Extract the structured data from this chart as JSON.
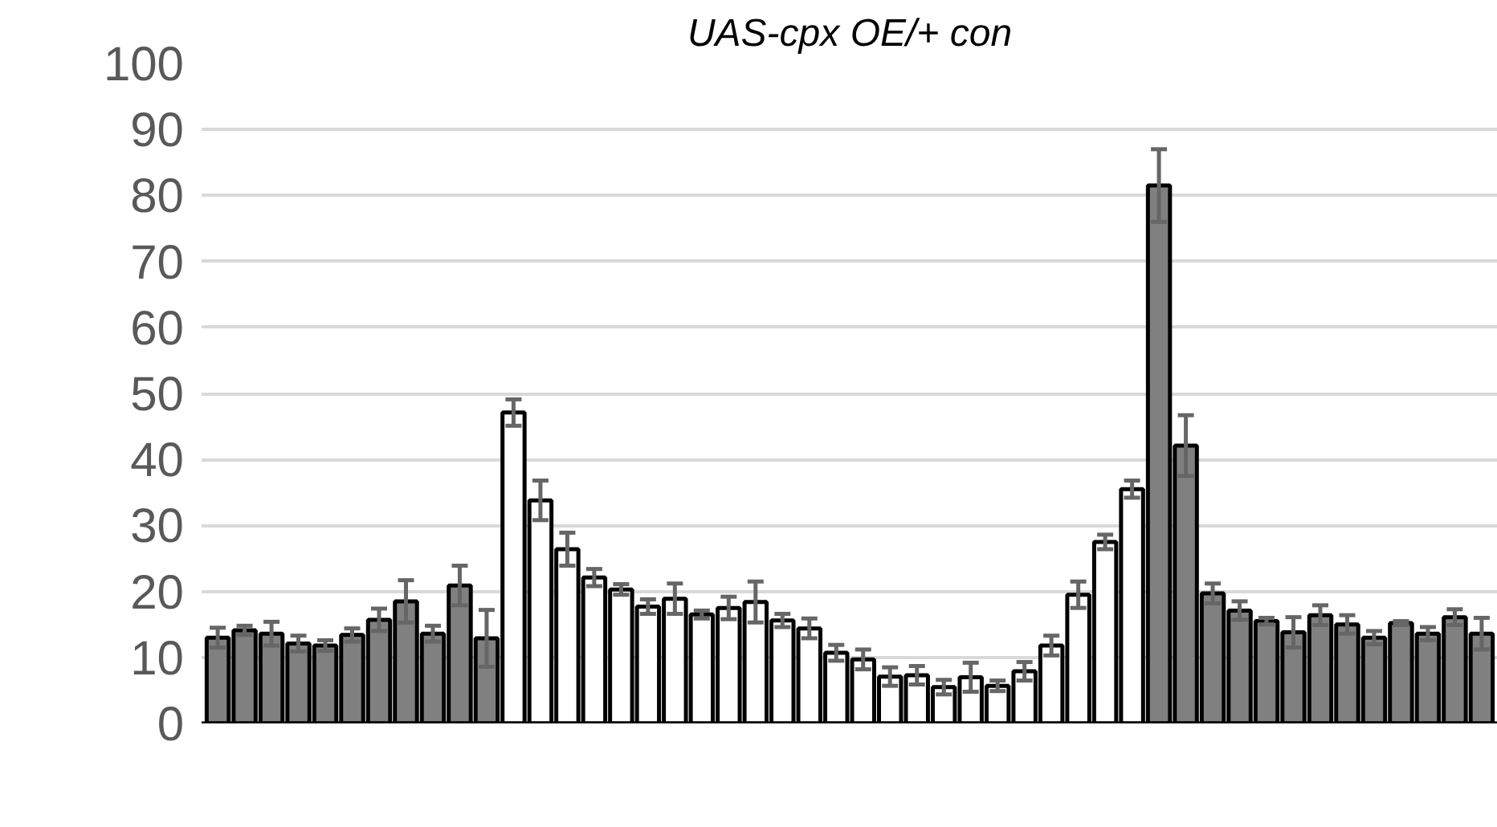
{
  "chart_data": {
    "type": "bar",
    "title": "UAS-cpx OE/+ con",
    "categories": [
      null,
      null,
      null,
      null,
      null,
      null,
      null,
      null,
      null,
      null,
      null,
      null,
      null,
      null,
      null,
      null,
      null,
      null,
      null,
      null,
      null,
      null,
      null,
      null,
      null,
      null,
      null,
      null,
      null,
      null,
      null,
      null,
      null,
      null,
      null,
      null,
      null,
      null,
      null,
      null,
      null,
      null,
      null,
      null,
      null,
      null,
      null,
      null
    ],
    "values": [
      13,
      14.1,
      13.6,
      12.1,
      11.8,
      13.4,
      15.7,
      18.5,
      13.6,
      20.9,
      12.9,
      47.1,
      33.8,
      26.4,
      22.1,
      20.3,
      17.7,
      18.9,
      16.5,
      17.5,
      18.4,
      15.6,
      14.4,
      10.7,
      9.7,
      7.1,
      7.3,
      5.5,
      7.0,
      5.7,
      7.9,
      11.8,
      19.5,
      27.5,
      35.5,
      81.5,
      42.1,
      19.7,
      17.1,
      15.5,
      13.8,
      16.4,
      15,
      13,
      15.2,
      13.6,
      16.1,
      13.6
    ],
    "errors": [
      1.5,
      0.7,
      1.8,
      1.2,
      0.8,
      1,
      1.7,
      3.2,
      1.2,
      3,
      4.3,
      2,
      3,
      2.5,
      1.3,
      0.8,
      1.1,
      2.3,
      0.6,
      1.7,
      3.1,
      1,
      1.5,
      1.2,
      1.5,
      1.4,
      1.4,
      1.1,
      2.2,
      0.8,
      1.4,
      1.5,
      2,
      1.1,
      1.3,
      5.5,
      4.6,
      1.5,
      1.4,
      0.5,
      2.3,
      1.5,
      1.4,
      1,
      0.3,
      1,
      1.2,
      2.4
    ],
    "colors": [
      "#808080",
      "#808080",
      "#808080",
      "#808080",
      "#808080",
      "#808080",
      "#808080",
      "#808080",
      "#808080",
      "#808080",
      "#808080",
      "#ffffff",
      "#ffffff",
      "#ffffff",
      "#ffffff",
      "#ffffff",
      "#ffffff",
      "#ffffff",
      "#ffffff",
      "#ffffff",
      "#ffffff",
      "#ffffff",
      "#ffffff",
      "#ffffff",
      "#ffffff",
      "#ffffff",
      "#ffffff",
      "#ffffff",
      "#ffffff",
      "#ffffff",
      "#ffffff",
      "#ffffff",
      "#ffffff",
      "#ffffff",
      "#ffffff",
      "#808080",
      "#808080",
      "#808080",
      "#808080",
      "#808080",
      "#808080",
      "#808080",
      "#808080",
      "#808080",
      "#808080",
      "#808080",
      "#808080",
      "#808080"
    ],
    "ylim": [
      0,
      100
    ],
    "yticks": [
      0,
      10,
      20,
      30,
      40,
      50,
      60,
      70,
      80,
      90,
      100
    ],
    "grid": "y"
  }
}
